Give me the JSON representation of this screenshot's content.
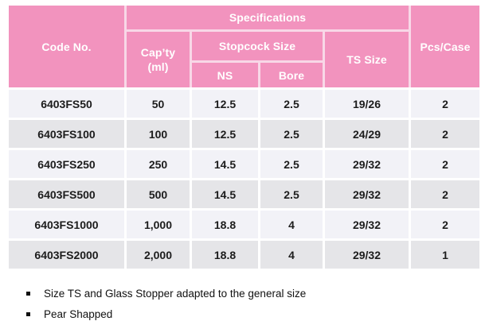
{
  "colors": {
    "header_pink": "#F293BE",
    "header_gap_pink": "#F8D8E7",
    "row_light": "#F2F2F7",
    "row_alt": "#E5E5E8",
    "body_text": "#1C1C1C"
  },
  "table": {
    "header": {
      "code_no": "Code No.",
      "specifications": "Specifications",
      "capty_line1": "Cap’ty",
      "capty_line2": "(ml)",
      "stopcock_size": "Stopcock Size",
      "ns": "NS",
      "bore": "Bore",
      "ts_size": "TS Size",
      "pcs_case": "Pcs/Case"
    },
    "columns": [
      "code",
      "capty",
      "ns",
      "bore",
      "ts",
      "pcs"
    ],
    "rows": [
      {
        "code": "6403FS50",
        "capty": "50",
        "ns": "12.5",
        "bore": "2.5",
        "ts": "19/26",
        "pcs": "2"
      },
      {
        "code": "6403FS100",
        "capty": "100",
        "ns": "12.5",
        "bore": "2.5",
        "ts": "24/29",
        "pcs": "2"
      },
      {
        "code": "6403FS250",
        "capty": "250",
        "ns": "14.5",
        "bore": "2.5",
        "ts": "29/32",
        "pcs": "2"
      },
      {
        "code": "6403FS500",
        "capty": "500",
        "ns": "14.5",
        "bore": "2.5",
        "ts": "29/32",
        "pcs": "2"
      },
      {
        "code": "6403FS1000",
        "capty": "1,000",
        "ns": "18.8",
        "bore": "4",
        "ts": "29/32",
        "pcs": "2"
      },
      {
        "code": "6403FS2000",
        "capty": "2,000",
        "ns": "18.8",
        "bore": "4",
        "ts": "29/32",
        "pcs": "1"
      }
    ]
  },
  "notes": [
    "Size TS and Glass Stopper adapted to the general size",
    "Pear Shapped"
  ]
}
